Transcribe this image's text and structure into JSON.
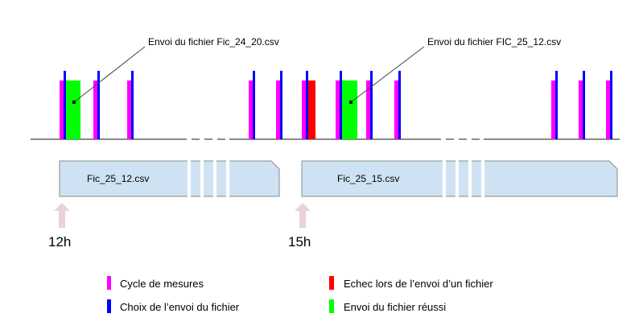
{
  "colors": {
    "measure_cycle": "#ff00ff",
    "send_choice": "#0000ff",
    "send_failure": "#ff0000",
    "send_success": "#00ff00",
    "file_fill": "#cfe2f3",
    "file_stroke": "#8a8a8a",
    "arrow_fill": "#ead1dc",
    "line": "#444444"
  },
  "callouts": {
    "left": "Envoi du fichier Fic_24_20.csv",
    "right": "Envoi du fichier FIC_25_12.csv"
  },
  "files": {
    "first": "Fic_25_12.csv",
    "second": "Fic_25_15.csv"
  },
  "hours": {
    "first": "12h",
    "second": "15h"
  },
  "legend": {
    "measure_cycle": "Cycle de mesures",
    "send_choice": "Choix de l’envoi du fichier",
    "send_failure": "Echec lors de l’envoi d’un fichier",
    "send_success": "Envoi du fichier réussi"
  }
}
